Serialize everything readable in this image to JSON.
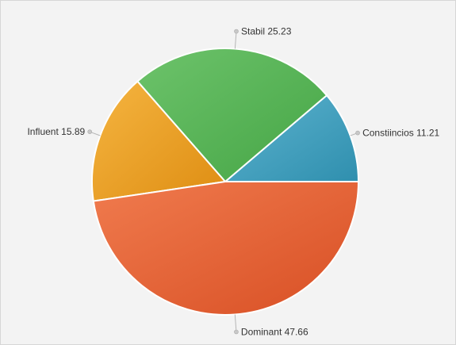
{
  "chart_data": {
    "type": "pie",
    "start_angle_deg": 0,
    "direction": "counterclockwise",
    "slices": [
      {
        "name": "Constiincios",
        "value": 11.21,
        "label": "Constiincios 11.21",
        "color_light": "#5db3cf",
        "color_dark": "#2f8fae"
      },
      {
        "name": "Stabil",
        "value": 25.23,
        "label": "Stabil 25.23",
        "color_light": "#6dc36b",
        "color_dark": "#45a545"
      },
      {
        "name": "Influent",
        "value": 15.89,
        "label": "Influent 15.89",
        "color_light": "#f5b541",
        "color_dark": "#de8d12"
      },
      {
        "name": "Dominant",
        "value": 47.66,
        "label": "Dominant 47.66",
        "color_light": "#f07b4e",
        "color_dark": "#d84f24"
      }
    ]
  }
}
